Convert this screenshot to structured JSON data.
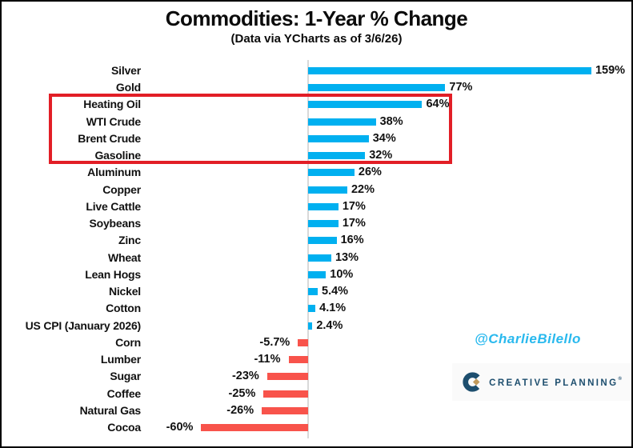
{
  "header": {
    "title": "Commodities: 1-Year % Change",
    "subtitle": "(Data via YCharts as of 3/6/26)"
  },
  "chart_data": {
    "type": "bar",
    "orientation": "horizontal",
    "title": "Commodities: 1-Year % Change",
    "subtitle": "(Data via YCharts as of 3/6/26)",
    "categories": [
      "Silver",
      "Gold",
      "Heating Oil",
      "WTI Crude",
      "Brent Crude",
      "Gasoline",
      "Aluminum",
      "Copper",
      "Live Cattle",
      "Soybeans",
      "Zinc",
      "Wheat",
      "Lean Hogs",
      "Nickel",
      "Cotton",
      "US CPI (January 2026)",
      "Corn",
      "Lumber",
      "Sugar",
      "Coffee",
      "Natural Gas",
      "Cocoa"
    ],
    "values": [
      159,
      77,
      64,
      38,
      34,
      32,
      26,
      22,
      17,
      17,
      16,
      13,
      10,
      5.4,
      4.1,
      2.4,
      -5.7,
      -11,
      -23,
      -25,
      -26,
      -60
    ],
    "value_labels": [
      "159%",
      "77%",
      "64%",
      "38%",
      "34%",
      "32%",
      "26%",
      "22%",
      "17%",
      "17%",
      "16%",
      "13%",
      "10%",
      "5.4%",
      "4.1%",
      "2.4%",
      "-5.7%",
      "-11%",
      "-23%",
      "-25%",
      "-26%",
      "-60%"
    ],
    "xlim": [
      -70,
      170
    ],
    "grid": false,
    "legend": "none",
    "positive_color": "#00b0f0",
    "negative_color": "#f8534b",
    "axis_line_color": "#d9d9d9",
    "highlight_box": {
      "categories": [
        "Heating Oil",
        "WTI Crude",
        "Brent Crude",
        "Gasoline"
      ],
      "color": "#e21e26"
    }
  },
  "annotations": {
    "watermark": "@CharlieBilello",
    "watermark_color": "#29b9ee"
  },
  "logo": {
    "text": "CREATIVE PLANNING",
    "registered_mark": "®",
    "navy": "#1d4e6e",
    "gold": "#c19a5b"
  }
}
